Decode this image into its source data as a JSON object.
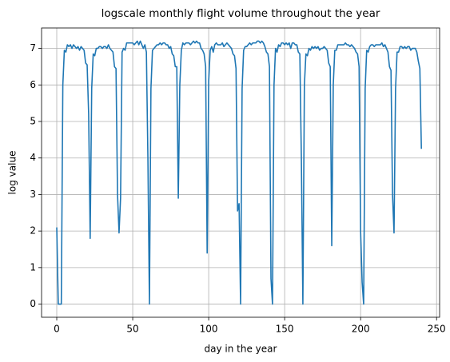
{
  "chart_data": {
    "type": "line",
    "title": "logscale monthly flight volume throughout the year",
    "xlabel": "day in the year",
    "ylabel": "log value",
    "color": "#1f77b4",
    "grid": true,
    "xlim": [
      -10,
      252
    ],
    "ylim": [
      -0.36,
      7.56
    ],
    "xticks": [
      0,
      50,
      100,
      150,
      200,
      250
    ],
    "yticks": [
      0,
      1,
      2,
      3,
      4,
      5,
      6,
      7
    ],
    "x": [
      0,
      1,
      2,
      3,
      4,
      5,
      6,
      7,
      8,
      9,
      10,
      11,
      12,
      13,
      14,
      15,
      16,
      17,
      18,
      19,
      20,
      21,
      22,
      23,
      24,
      25,
      26,
      27,
      28,
      29,
      30,
      31,
      32,
      33,
      34,
      35,
      36,
      37,
      38,
      39,
      40,
      41,
      42,
      43,
      44,
      45,
      46,
      47,
      48,
      49,
      50,
      51,
      52,
      53,
      54,
      55,
      56,
      57,
      58,
      59,
      60,
      61,
      62,
      63,
      64,
      65,
      66,
      67,
      68,
      69,
      70,
      71,
      72,
      73,
      74,
      75,
      76,
      77,
      78,
      79,
      80,
      81,
      82,
      83,
      84,
      85,
      86,
      87,
      88,
      89,
      90,
      91,
      92,
      93,
      94,
      95,
      96,
      97,
      98,
      99,
      100,
      101,
      102,
      103,
      104,
      105,
      106,
      107,
      108,
      109,
      110,
      111,
      112,
      113,
      114,
      115,
      116,
      117,
      118,
      119,
      120,
      121,
      122,
      123,
      124,
      125,
      126,
      127,
      128,
      129,
      130,
      131,
      132,
      133,
      134,
      135,
      136,
      137,
      138,
      139,
      140,
      141,
      142,
      143,
      144,
      145,
      146,
      147,
      148,
      149,
      150,
      151,
      152,
      153,
      154,
      155,
      156,
      157,
      158,
      159,
      160,
      161,
      162,
      163,
      164,
      165,
      166,
      167,
      168,
      169,
      170,
      171,
      172,
      173,
      174,
      175,
      176,
      177,
      178,
      179,
      180,
      181,
      182,
      183,
      184,
      185,
      186,
      187,
      188,
      189,
      190,
      191,
      192,
      193,
      194,
      195,
      196,
      197,
      198,
      199,
      200,
      201,
      202,
      203,
      204,
      205,
      206,
      207,
      208,
      209,
      210,
      211,
      212,
      213,
      214,
      215,
      216,
      217,
      218,
      219,
      220,
      221,
      222,
      223,
      224,
      225,
      226,
      227,
      228,
      229,
      230,
      231,
      232,
      233,
      234,
      235,
      236,
      237,
      238,
      239,
      240
    ],
    "values": [
      2.1,
      0,
      0,
      0,
      6.0,
      6.95,
      6.9,
      7.1,
      7.05,
      7.1,
      7.0,
      7.1,
      7.05,
      7.0,
      7.05,
      6.95,
      7.05,
      7.0,
      6.95,
      6.6,
      6.55,
      5.2,
      1.8,
      5.9,
      6.85,
      6.8,
      7.0,
      7.0,
      7.05,
      7.05,
      7.0,
      7.05,
      7.05,
      7.0,
      7.1,
      7.0,
      6.95,
      6.9,
      6.5,
      6.45,
      3.0,
      1.95,
      2.9,
      6.9,
      7.0,
      6.95,
      7.15,
      7.15,
      7.15,
      7.15,
      7.15,
      7.1,
      7.15,
      7.2,
      7.1,
      7.2,
      7.1,
      7.0,
      7.1,
      6.9,
      4.0,
      0,
      5.9,
      6.95,
      7.0,
      7.05,
      7.1,
      7.1,
      7.15,
      7.1,
      7.15,
      7.15,
      7.1,
      7.1,
      7.0,
      7.05,
      6.85,
      6.8,
      6.5,
      6.5,
      2.9,
      6.0,
      6.95,
      7.15,
      7.1,
      7.15,
      7.15,
      7.15,
      7.1,
      7.15,
      7.2,
      7.15,
      7.2,
      7.15,
      7.15,
      7.0,
      6.95,
      6.85,
      6.5,
      1.4,
      6.1,
      6.95,
      7.05,
      6.9,
      7.1,
      7.15,
      7.1,
      7.1,
      7.1,
      7.15,
      7.05,
      7.1,
      7.15,
      7.1,
      7.05,
      7.0,
      6.85,
      6.8,
      6.45,
      2.55,
      2.75,
      0,
      5.9,
      6.95,
      7.05,
      7.05,
      7.1,
      7.15,
      7.1,
      7.15,
      7.15,
      7.15,
      7.2,
      7.2,
      7.15,
      7.2,
      7.15,
      7.05,
      6.9,
      6.85,
      6.5,
      0.7,
      0,
      6.0,
      7.0,
      6.9,
      7.1,
      7.05,
      7.15,
      7.15,
      7.1,
      7.15,
      7.1,
      7.15,
      7.0,
      7.15,
      7.15,
      7.1,
      7.1,
      6.9,
      6.85,
      4.0,
      0,
      6.0,
      6.85,
      6.8,
      7.0,
      6.95,
      7.05,
      7.0,
      7.05,
      7.0,
      7.05,
      6.95,
      7.0,
      7.0,
      7.05,
      7.0,
      6.95,
      6.6,
      6.5,
      1.6,
      6.0,
      6.95,
      6.95,
      7.1,
      7.1,
      7.1,
      7.1,
      7.1,
      7.15,
      7.1,
      7.1,
      7.05,
      7.1,
      7.05,
      7.0,
      6.9,
      6.85,
      6.5,
      2.0,
      0.6,
      0,
      5.9,
      6.95,
      6.9,
      7.05,
      7.1,
      7.1,
      7.05,
      7.1,
      7.1,
      7.1,
      7.1,
      7.15,
      7.05,
      7.1,
      7.0,
      6.9,
      6.5,
      6.4,
      3.0,
      1.95,
      5.9,
      6.9,
      6.9,
      7.05,
      7.05,
      7.0,
      7.05,
      7.0,
      7.05,
      7.05,
      6.95,
      7.0,
      7.0,
      7.0,
      6.9,
      6.65,
      6.45,
      4.25
    ]
  }
}
